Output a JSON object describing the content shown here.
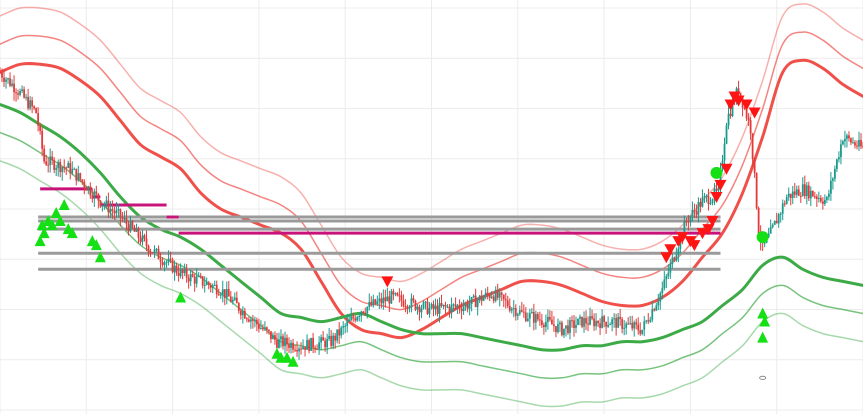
{
  "chart_data": {
    "type": "line",
    "title": "",
    "xlabel": "",
    "ylabel": "",
    "x_range": [
      0,
      430
    ],
    "ylim": [
      0,
      100
    ],
    "grid": true,
    "legend": "none",
    "colors": {
      "upper_band": "#f0504a",
      "lower_band": "#3caa46",
      "candle_up": "#1a9a8c",
      "candle_down": "#e23a3a",
      "level_gray": "#9a9a9a",
      "level_magenta": "#c8147a",
      "marker_green": "#15e015",
      "marker_red": "#ff1414"
    },
    "price_keypoints": [
      [
        0,
        84
      ],
      [
        8,
        80
      ],
      [
        18,
        74
      ],
      [
        22,
        62
      ],
      [
        35,
        60
      ],
      [
        50,
        52
      ],
      [
        60,
        48
      ],
      [
        75,
        40
      ],
      [
        90,
        34
      ],
      [
        110,
        30
      ],
      [
        120,
        25
      ],
      [
        138,
        17
      ],
      [
        150,
        16
      ],
      [
        165,
        17
      ],
      [
        180,
        25
      ],
      [
        195,
        28
      ],
      [
        215,
        25
      ],
      [
        232,
        26
      ],
      [
        245,
        29
      ],
      [
        260,
        24
      ],
      [
        272,
        22
      ],
      [
        280,
        20
      ],
      [
        290,
        22
      ],
      [
        305,
        22
      ],
      [
        320,
        20
      ],
      [
        330,
        30
      ],
      [
        342,
        47
      ],
      [
        350,
        52
      ],
      [
        358,
        54
      ],
      [
        362,
        72
      ],
      [
        368,
        80
      ],
      [
        374,
        70
      ],
      [
        378,
        45
      ],
      [
        380,
        40
      ],
      [
        385,
        45
      ],
      [
        392,
        53
      ],
      [
        400,
        55
      ],
      [
        412,
        52
      ],
      [
        420,
        68
      ],
      [
        430,
        65
      ]
    ],
    "series": [
      {
        "band": "upper",
        "x": [
          0,
          10,
          20,
          30,
          40,
          50,
          60,
          70,
          80,
          90,
          100,
          110,
          120,
          130,
          140,
          150,
          160,
          170,
          180,
          190,
          200,
          210,
          220,
          230,
          240,
          250,
          260,
          270,
          280,
          290,
          300,
          310,
          320,
          330,
          340,
          350,
          360,
          370,
          380,
          390,
          400,
          410,
          420,
          430
        ],
        "values": [
          98,
          100,
          100,
          99,
          96,
          92,
          86,
          80,
          77,
          74,
          68,
          64,
          62,
          60,
          58,
          54,
          46,
          38,
          34,
          33,
          32,
          34,
          37,
          40,
          42,
          44,
          46,
          46,
          45,
          43,
          41,
          40,
          40,
          42,
          46,
          52,
          58,
          68,
          82,
          98,
          101,
          99,
          95,
          92
        ],
        "widths": [
          1.5,
          1.5,
          3
        ]
      },
      {
        "band": "lower",
        "x": [
          0,
          10,
          20,
          30,
          40,
          50,
          60,
          70,
          80,
          90,
          100,
          110,
          120,
          130,
          140,
          150,
          160,
          170,
          180,
          190,
          200,
          210,
          220,
          230,
          240,
          250,
          260,
          270,
          280,
          290,
          300,
          310,
          320,
          330,
          340,
          350,
          360,
          370,
          380,
          390,
          400,
          410,
          420,
          430
        ],
        "values": [
          62,
          60,
          57,
          54,
          50,
          45,
          39,
          34,
          31,
          29,
          26,
          22,
          18,
          14,
          10,
          9,
          8,
          9,
          10,
          8,
          6,
          5,
          5,
          5,
          4,
          3,
          2,
          1,
          1,
          2,
          2,
          3,
          3,
          4,
          6,
          8,
          12,
          16,
          22,
          24,
          21,
          19,
          18,
          17
        ],
        "widths": [
          1.5,
          1.5,
          3
        ]
      }
    ],
    "levels": [
      {
        "y": 48,
        "x_start": 19,
        "x_end": 359,
        "color": "gray"
      },
      {
        "y": 47,
        "x_start": 19,
        "x_end": 359,
        "color": "gray"
      },
      {
        "y": 45,
        "x_start": 19,
        "x_end": 359,
        "color": "gray"
      },
      {
        "y": 39,
        "x_start": 19,
        "x_end": 359,
        "color": "gray"
      },
      {
        "y": 35,
        "x_start": 19,
        "x_end": 359,
        "color": "gray"
      },
      {
        "y": 55,
        "x_start": 20,
        "x_end": 46,
        "color": "magenta"
      },
      {
        "y": 53,
        "x_start": 46,
        "x_end": 50,
        "color": "magenta"
      },
      {
        "y": 51,
        "x_start": 50,
        "x_end": 83,
        "color": "magenta"
      },
      {
        "y": 48,
        "x_start": 83,
        "x_end": 89,
        "color": "magenta"
      },
      {
        "y": 44,
        "x_start": 89,
        "x_end": 359,
        "color": "magenta"
      }
    ],
    "buy_markers": [
      [
        20,
        42
      ],
      [
        21,
        46
      ],
      [
        22,
        44
      ],
      [
        24,
        47
      ],
      [
        26,
        46
      ],
      [
        28,
        49
      ],
      [
        30,
        47
      ],
      [
        32,
        51
      ],
      [
        34,
        45
      ],
      [
        36,
        44
      ],
      [
        46,
        42
      ],
      [
        48,
        41
      ],
      [
        50,
        38
      ],
      [
        90,
        28
      ],
      [
        138,
        14
      ],
      [
        140,
        13
      ],
      [
        143,
        13
      ],
      [
        146,
        12
      ],
      [
        380,
        24
      ],
      [
        381,
        22
      ],
      [
        380,
        18
      ]
    ],
    "sell_markers": [
      [
        193,
        32
      ],
      [
        332,
        38
      ],
      [
        334,
        40
      ],
      [
        338,
        42
      ],
      [
        340,
        43
      ],
      [
        344,
        42
      ],
      [
        346,
        41
      ],
      [
        350,
        44
      ],
      [
        353,
        45
      ],
      [
        355,
        47
      ],
      [
        357,
        53
      ],
      [
        359,
        56
      ],
      [
        362,
        60
      ],
      [
        364,
        76
      ],
      [
        366,
        78
      ],
      [
        368,
        77
      ],
      [
        372,
        76
      ],
      [
        376,
        74
      ]
    ],
    "circle_markers": [
      [
        357,
        59,
        "green"
      ],
      [
        380,
        43,
        "green"
      ],
      [
        380,
        8,
        "gray"
      ]
    ]
  }
}
